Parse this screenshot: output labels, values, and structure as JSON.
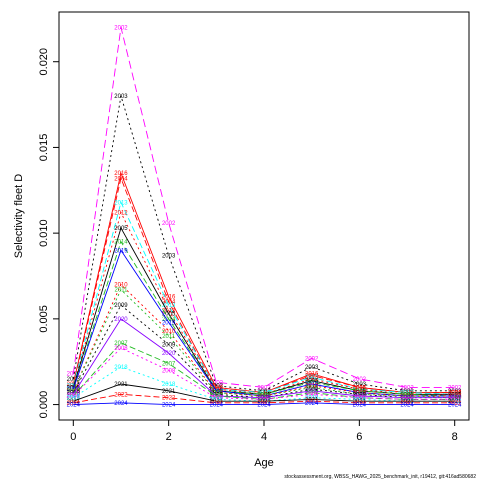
{
  "chart_data": {
    "type": "line",
    "title": "",
    "xlabel": "Age",
    "ylabel": "Selectivity fleet D",
    "xlim": [
      -0.3,
      8.3
    ],
    "ylim": [
      -0.0009,
      0.0229
    ],
    "x_ticks": [
      "0",
      "2",
      "4",
      "6",
      "8"
    ],
    "y_ticks": [
      "0.000",
      "0.005",
      "0.010",
      "0.015",
      "0.020"
    ],
    "grid": false,
    "legend": "none",
    "footer": "stockassessment.org, WBSS_HAWG_2025_benchmark_init, r19412, git:416ad580682",
    "x": [
      0,
      1,
      2,
      3,
      4,
      5,
      6,
      7,
      8
    ],
    "series": [
      {
        "name": "2002",
        "color": "#ff00ff",
        "dash": "8,4",
        "values": [
          0.0018,
          0.022,
          0.0106,
          0.0013,
          0.001,
          0.0027,
          0.0015,
          0.001,
          0.001
        ]
      },
      {
        "name": "2003",
        "color": "#000000",
        "dash": "2,3",
        "values": [
          0.0015,
          0.018,
          0.0087,
          0.0011,
          0.0008,
          0.0022,
          0.0012,
          0.0008,
          0.0008
        ]
      },
      {
        "name": "2016",
        "color": "#ff0000",
        "dash": "",
        "values": [
          0.0012,
          0.0135,
          0.0063,
          0.001,
          0.0007,
          0.0018,
          0.001,
          0.0007,
          0.0007
        ]
      },
      {
        "name": "2004",
        "color": "#ff0000",
        "dash": "6,3",
        "values": [
          0.0011,
          0.0132,
          0.006,
          0.0009,
          0.0007,
          0.0017,
          0.001,
          0.0007,
          0.0007
        ]
      },
      {
        "name": "2013",
        "color": "#00ffff",
        "dash": "6,3",
        "values": [
          0.0011,
          0.0118,
          0.0058,
          0.0009,
          0.0007,
          0.0016,
          0.0009,
          0.0007,
          0.0006
        ]
      },
      {
        "name": "2012",
        "color": "#ff0000",
        "dash": "2,3",
        "values": [
          0.001,
          0.0112,
          0.0055,
          0.0009,
          0.0006,
          0.0015,
          0.0009,
          0.0006,
          0.0006
        ]
      },
      {
        "name": "2005",
        "color": "#000000",
        "dash": "",
        "values": [
          0.001,
          0.0103,
          0.0053,
          0.0008,
          0.0006,
          0.0014,
          0.0008,
          0.0006,
          0.0006
        ]
      },
      {
        "name": "2014",
        "color": "#22bb22",
        "dash": "6,3",
        "values": [
          0.0009,
          0.0095,
          0.005,
          0.0008,
          0.0006,
          0.0013,
          0.0008,
          0.0006,
          0.0005
        ]
      },
      {
        "name": "2019",
        "color": "#0000ff",
        "dash": "",
        "values": [
          0.0009,
          0.009,
          0.0048,
          0.0008,
          0.0005,
          0.0012,
          0.0007,
          0.0005,
          0.0005
        ]
      },
      {
        "name": "2010",
        "color": "#ff0000",
        "dash": "2,3",
        "values": [
          0.0008,
          0.007,
          0.0043,
          0.0007,
          0.0005,
          0.0011,
          0.0007,
          0.0005,
          0.0005
        ]
      },
      {
        "name": "2011",
        "color": "#22bb22",
        "dash": "2,3",
        "values": [
          0.0008,
          0.0067,
          0.004,
          0.0007,
          0.0005,
          0.001,
          0.0006,
          0.0005,
          0.0004
        ]
      },
      {
        "name": "2009",
        "color": "#000000",
        "dash": "2,3",
        "values": [
          0.0007,
          0.0058,
          0.0035,
          0.0006,
          0.0004,
          0.0009,
          0.0006,
          0.0004,
          0.0004
        ]
      },
      {
        "name": "2020",
        "color": "#8800ff",
        "dash": "",
        "values": [
          0.0006,
          0.005,
          0.003,
          0.0005,
          0.0004,
          0.0008,
          0.0005,
          0.0004,
          0.0004
        ]
      },
      {
        "name": "2007",
        "color": "#22bb22",
        "dash": "6,3",
        "values": [
          0.0005,
          0.0036,
          0.0024,
          0.0005,
          0.0003,
          0.0007,
          0.0004,
          0.0003,
          0.0003
        ]
      },
      {
        "name": "2008",
        "color": "#ff00ff",
        "dash": "2,3",
        "values": [
          0.0005,
          0.0033,
          0.002,
          0.0004,
          0.0003,
          0.0006,
          0.0004,
          0.0003,
          0.0003
        ]
      },
      {
        "name": "2018",
        "color": "#00ffff",
        "dash": "2,3",
        "values": [
          0.0004,
          0.0022,
          0.0012,
          0.0003,
          0.0002,
          0.0004,
          0.0003,
          0.0002,
          0.0002
        ]
      },
      {
        "name": "2021",
        "color": "#000000",
        "dash": "",
        "values": [
          0.0002,
          0.0012,
          0.0008,
          0.0002,
          0.0002,
          0.0003,
          0.0002,
          0.0002,
          0.0002
        ]
      },
      {
        "name": "2022",
        "color": "#ff0000",
        "dash": "6,3",
        "values": [
          0.0001,
          0.0006,
          0.0004,
          0.0001,
          0.0001,
          0.0002,
          0.0001,
          0.0001,
          0.0001
        ]
      },
      {
        "name": "2024",
        "color": "#0000ff",
        "dash": "",
        "values": [
          0.0,
          0.0001,
          0.0,
          0.0,
          0.0,
          0.0001,
          0.0,
          0.0,
          0.0
        ]
      }
    ]
  }
}
